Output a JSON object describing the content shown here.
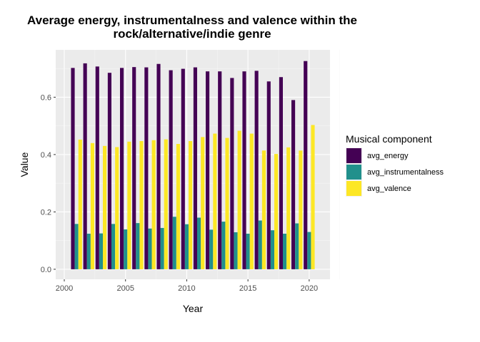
{
  "chart_data": {
    "type": "bar",
    "title_line1": "Average energy, instrumentalness and valence within the",
    "title_line2": "rock/alternative/indie genre",
    "xlabel": "Year",
    "ylabel": "Value",
    "ylim": [
      -0.035,
      0.765
    ],
    "xlim": [
      1999.3,
      2021.7
    ],
    "x_ticks": [
      2000,
      2005,
      2010,
      2015,
      2020
    ],
    "y_ticks": [
      0.0,
      0.2,
      0.4,
      0.6
    ],
    "y_tick_labels": [
      "0.0",
      "0.2",
      "0.4",
      "0.6"
    ],
    "x_tick_labels": [
      "2000",
      "2005",
      "2010",
      "2015",
      "2020"
    ],
    "legend_title": "Musical component",
    "legend_position": "right",
    "grid": true,
    "x": [
      2001,
      2002,
      2003,
      2004,
      2005,
      2006,
      2007,
      2008,
      2009,
      2010,
      2011,
      2012,
      2013,
      2014,
      2015,
      2016,
      2017,
      2018,
      2019,
      2020
    ],
    "series": [
      {
        "name": "avg_energy",
        "color": "#440154",
        "values": [
          0.702,
          0.718,
          0.707,
          0.685,
          0.702,
          0.705,
          0.704,
          0.716,
          0.694,
          0.699,
          0.704,
          0.69,
          0.69,
          0.667,
          0.69,
          0.692,
          0.655,
          0.67,
          0.59,
          0.726
        ]
      },
      {
        "name": "avg_instrumentalness",
        "color": "#21908C",
        "values": [
          0.158,
          0.124,
          0.125,
          0.158,
          0.139,
          0.161,
          0.142,
          0.144,
          0.183,
          0.157,
          0.18,
          0.138,
          0.166,
          0.129,
          0.124,
          0.17,
          0.136,
          0.124,
          0.16,
          0.13
        ]
      },
      {
        "name": "avg_valence",
        "color": "#FDE725",
        "values": [
          0.452,
          0.44,
          0.43,
          0.426,
          0.445,
          0.447,
          0.45,
          0.453,
          0.437,
          0.447,
          0.461,
          0.473,
          0.458,
          0.483,
          0.473,
          0.414,
          0.402,
          0.425,
          0.414,
          0.503
        ]
      }
    ]
  }
}
